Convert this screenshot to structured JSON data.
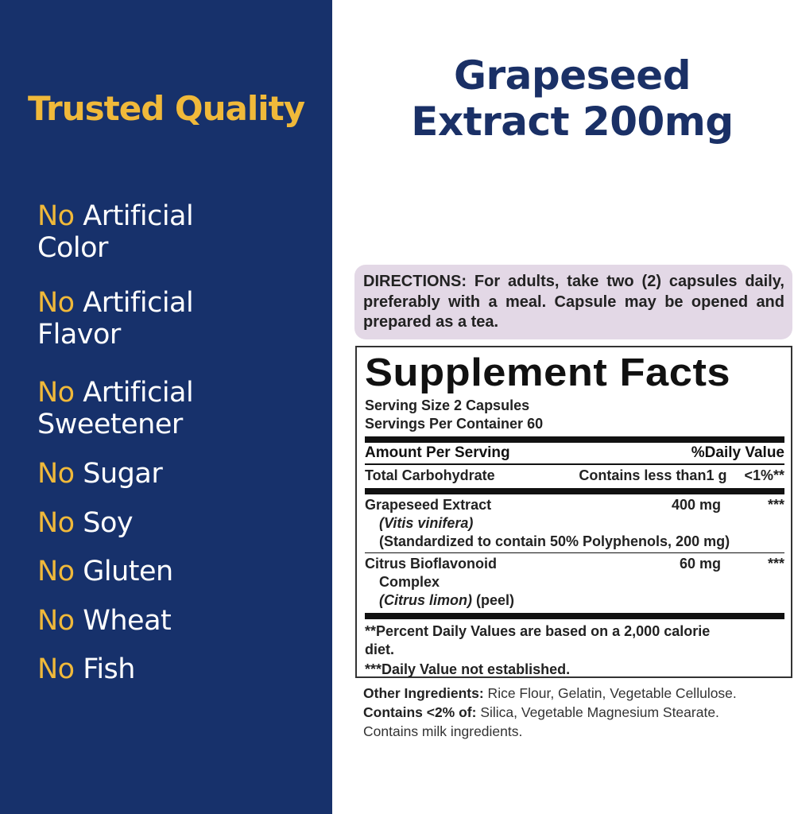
{
  "colors": {
    "panel": "#17316b",
    "accent": "#f0b93a",
    "title": "#1a3066",
    "directions_bg": "#e3d8e6"
  },
  "left": {
    "heading": "Trusted Quality",
    "claims": [
      {
        "no": "No",
        "line1": "Artificial",
        "line2": "Color"
      },
      {
        "no": "No",
        "line1": "Artificial",
        "line2": "Flavor"
      },
      {
        "no": "No",
        "line1": "Artificial",
        "line2": "Sweetener"
      },
      {
        "no": "No",
        "line1": "Sugar"
      },
      {
        "no": "No",
        "line1": "Soy"
      },
      {
        "no": "No",
        "line1": "Gluten"
      },
      {
        "no": "No",
        "line1": "Wheat"
      },
      {
        "no": "No",
        "line1": "Fish"
      }
    ]
  },
  "product": {
    "title_line1": "Grapeseed",
    "title_line2": "Extract 200mg"
  },
  "directions": "DIRECTIONS: For adults, take two (2) capsules daily, preferably with a meal. Capsule may be opened and prepared as a tea.",
  "facts": {
    "title": "Supplement Facts",
    "serving_size": "Serving Size 2 Capsules",
    "servings_per_container": "Servings Per Container 60",
    "header_amount": "Amount Per Serving",
    "header_dv": "%Daily Value",
    "rows": [
      {
        "name": "Total Carbohydrate",
        "amount": "Contains less than1 g",
        "dv": "<1%**"
      },
      {
        "name": "Grapeseed Extract",
        "sub1": "(Vitis vinifera)",
        "sub2": "(Standardized to contain 50% Polyphenols, 200 mg)",
        "amount": "400 mg",
        "dv": "***"
      },
      {
        "name": "Citrus Bioflavonoid",
        "sub1": "Complex",
        "sub2_it": "(Citrus limon)",
        "sub2": " (peel)",
        "amount": "60 mg",
        "dv": "***"
      }
    ],
    "footnote1": "**Percent Daily Values are based on a 2,000 calorie diet.",
    "footnote2": "***Daily Value not established."
  },
  "other": {
    "label1": "Other Ingredients:",
    "text1": " Rice Flour, Gelatin, Vegetable Cellulose.",
    "label2": "Contains <2% of:",
    "text2": " Silica, Vegetable Magnesium Stearate.",
    "text3": "Contains milk ingredients."
  }
}
